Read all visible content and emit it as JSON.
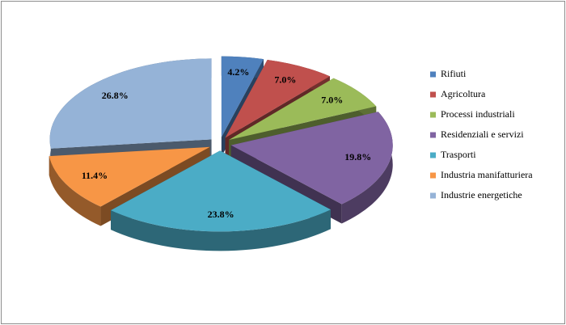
{
  "chart_data": {
    "type": "pie3d",
    "categories": [
      "Rifiuti",
      "Agricoltura",
      "Processi industriali",
      "Residenziali e servizi",
      "Trasporti",
      "Industria manifatturiera",
      "Industrie energetiche"
    ],
    "values": [
      4.2,
      7.0,
      7.0,
      19.8,
      23.8,
      11.4,
      26.8
    ],
    "value_labels": [
      "4.2%",
      "7.0%",
      "7.0%",
      "19.8%",
      "23.8%",
      "11.4%",
      "26.8%"
    ],
    "colors": [
      "#4f81bd",
      "#c0504d",
      "#9bbb59",
      "#8064a2",
      "#4bacc6",
      "#f79646",
      "#95b3d7"
    ],
    "legend": "right"
  }
}
